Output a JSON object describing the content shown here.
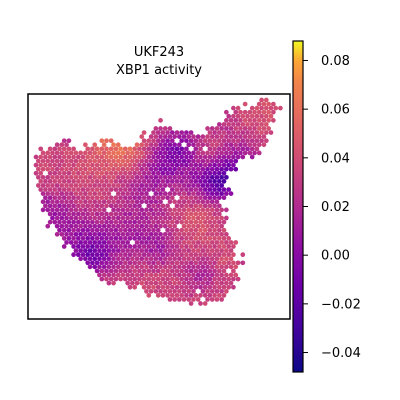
{
  "chart_data": {
    "type": "heatmap",
    "title": "UKF243",
    "subtitle": "XBP1 activity",
    "xlabel": "",
    "ylabel": "",
    "colormap": "plasma",
    "colorbar": {
      "range": [
        -0.048,
        0.088
      ],
      "ticks": [
        -0.04,
        -0.02,
        0.0,
        0.02,
        0.04,
        0.06,
        0.08
      ],
      "tick_labels": [
        "−0.04",
        "−0.02",
        "0.00",
        "0.02",
        "0.04",
        "0.06",
        "0.08"
      ]
    },
    "axes_frame": true,
    "grid": false,
    "legend": "colorbar-right",
    "spot_value_range": [
      -0.045,
      0.088
    ]
  }
}
